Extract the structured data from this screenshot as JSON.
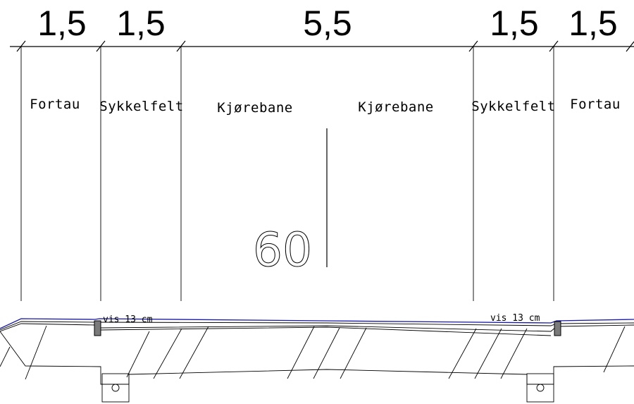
{
  "dimensions": [
    {
      "label": "1,5"
    },
    {
      "label": "1,5"
    },
    {
      "label": "5,5"
    },
    {
      "label": "1,5"
    },
    {
      "label": "1,5"
    }
  ],
  "lanes": [
    {
      "label": "Fortau"
    },
    {
      "label": "Sykkelfelt"
    },
    {
      "label": "Kjørebane"
    },
    {
      "label": "Kjørebane"
    },
    {
      "label": "Sykkelfelt"
    },
    {
      "label": "Fortau"
    }
  ],
  "speed_limit": "60",
  "curb_notes": {
    "left": "vis 13 cm",
    "right": "vis 13 cm"
  }
}
